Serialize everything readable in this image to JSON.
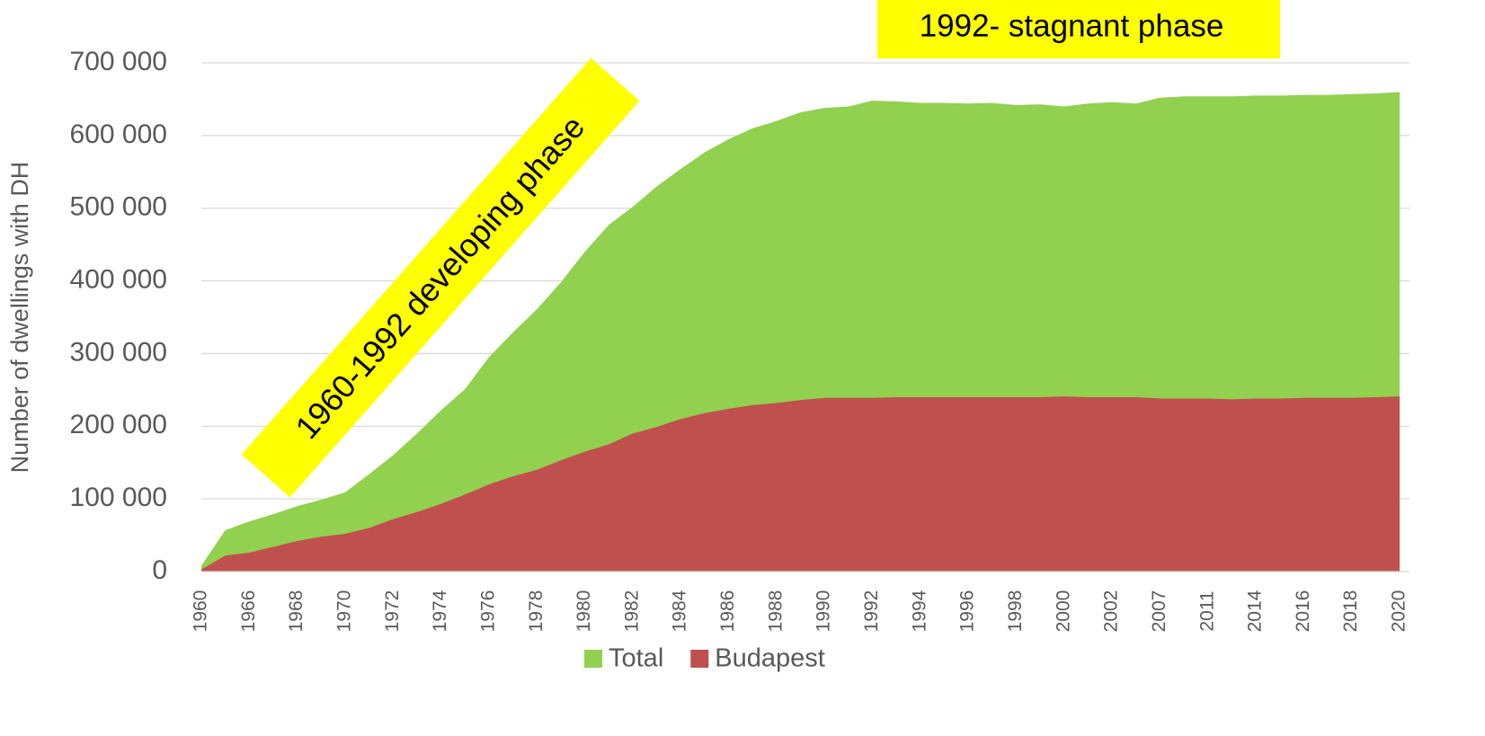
{
  "chart_data": {
    "type": "area",
    "y_label": "Number of dwellings with DH",
    "annotations": [
      "1992- stagnant phase",
      "1960-1992 developing phase"
    ],
    "categories": [
      "1960",
      null,
      "1966",
      null,
      "1968",
      null,
      "1970",
      null,
      "1972",
      null,
      "1974",
      null,
      "1976",
      null,
      "1978",
      null,
      "1980",
      null,
      "1982",
      null,
      "1984",
      null,
      "1986",
      null,
      "1988",
      null,
      "1990",
      null,
      "1992",
      null,
      "1994",
      null,
      "1996",
      null,
      "1998",
      null,
      "2000",
      null,
      "2002",
      null,
      "2007",
      null,
      "2011",
      null,
      "2014",
      null,
      "2016",
      null,
      "2018",
      null,
      "2020"
    ],
    "series": [
      {
        "name": "Total",
        "color": "#92d050",
        "values": [
          8000,
          57000,
          69000,
          79000,
          90000,
          99000,
          109000,
          134000,
          160000,
          190000,
          222000,
          251000,
          295000,
          329000,
          361000,
          398000,
          440000,
          477000,
          502000,
          530000,
          554000,
          577000,
          595000,
          610000,
          620000,
          632000,
          638000,
          640000,
          648000,
          647000,
          645000,
          645000,
          644000,
          645000,
          642000,
          643000,
          640000,
          644000,
          646000,
          644000,
          652000,
          654000,
          654000,
          654000,
          655000,
          655000,
          656000,
          656000,
          657000,
          658000,
          660000
        ]
      },
      {
        "name": "Budapest",
        "color": "#c0504d",
        "values": [
          3000,
          22000,
          26000,
          34000,
          42000,
          48000,
          52000,
          60000,
          72000,
          82000,
          93000,
          106000,
          120000,
          131000,
          140000,
          153000,
          165000,
          175000,
          190000,
          199000,
          210000,
          218000,
          224000,
          229000,
          232000,
          236000,
          239000,
          239000,
          239000,
          240000,
          240000,
          240000,
          240000,
          240000,
          240000,
          240000,
          241000,
          240000,
          240000,
          240000,
          238000,
          238000,
          238000,
          237000,
          238000,
          238000,
          239000,
          239000,
          239000,
          240000,
          241000
        ]
      }
    ],
    "ylim": [
      0,
      700000
    ],
    "yticks": [
      0,
      {
        "value": 100000,
        "label": "100 000"
      },
      {
        "value": 200000,
        "label": "200 000"
      },
      {
        "value": 300000,
        "label": "300 000"
      },
      {
        "value": 400000,
        "label": "400 000"
      },
      {
        "value": 500000,
        "label": "500 000"
      },
      {
        "value": 600000,
        "label": "600 000"
      },
      {
        "value": 700000,
        "label": "700 000"
      }
    ],
    "grid": true,
    "legend": "bottom"
  }
}
